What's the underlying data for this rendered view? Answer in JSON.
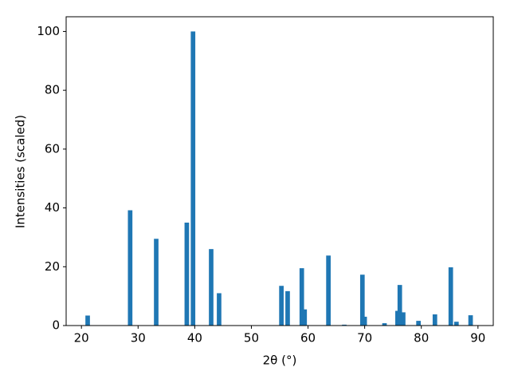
{
  "chart_data": {
    "type": "bar",
    "x_label": "2θ (°)",
    "y_label": "Intensities (scaled)",
    "x": [
      21.1,
      28.6,
      33.2,
      38.6,
      39.7,
      42.9,
      44.3,
      55.3,
      56.4,
      58.9,
      59.4,
      63.6,
      66.4,
      69.6,
      70.0,
      73.5,
      75.8,
      76.2,
      76.8,
      79.5,
      82.4,
      85.2,
      86.2,
      88.7
    ],
    "values": [
      3.4,
      39.2,
      29.5,
      35,
      100,
      26,
      11,
      13.5,
      11.7,
      19.5,
      5.5,
      23.8,
      0.3,
      17.3,
      3,
      0.8,
      5,
      13.8,
      4.5,
      1.6,
      3.8,
      19.8,
      1.3,
      3.5
    ],
    "color": "#1f77b4",
    "bar_width": 0.8,
    "xlim": [
      17.3,
      92.7
    ],
    "ylim": [
      0,
      105
    ],
    "xticks": [
      20,
      30,
      40,
      50,
      60,
      70,
      80,
      90
    ],
    "yticks": [
      0,
      20,
      40,
      60,
      80,
      100
    ],
    "grid": false
  }
}
